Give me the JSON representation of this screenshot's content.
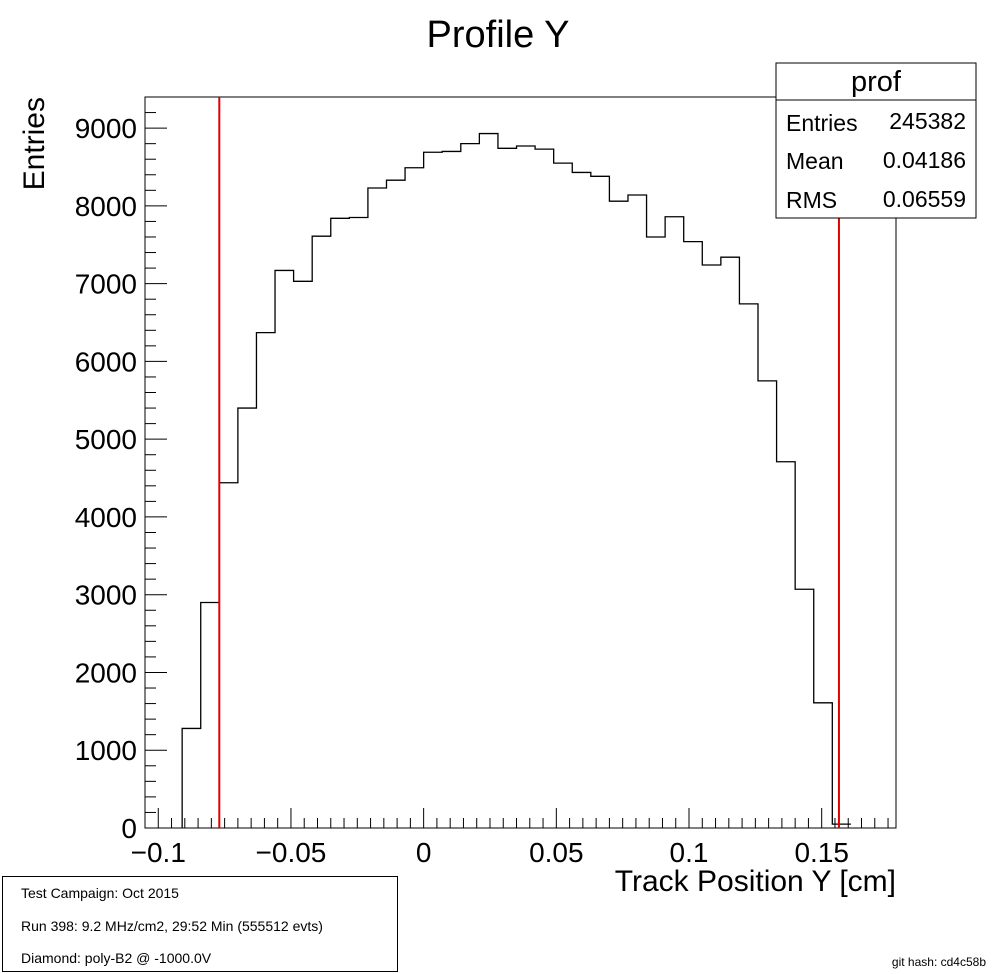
{
  "chart_data": {
    "type": "histogram",
    "title": "Profile Y",
    "xlabel": "Track Position Y [cm]",
    "ylabel": "Entries",
    "xlim": [
      -0.105,
      0.178
    ],
    "ylim": [
      0,
      9400
    ],
    "x_ticks": [
      -0.1,
      -0.05,
      0,
      0.05,
      0.1,
      0.15
    ],
    "x_tick_labels": [
      "−0.1",
      "−0.05",
      "0",
      "0.05",
      "0.1",
      "0.15"
    ],
    "y_ticks": [
      0,
      1000,
      2000,
      3000,
      4000,
      5000,
      6000,
      7000,
      8000,
      9000
    ],
    "y_tick_labels": [
      "0",
      "1000",
      "2000",
      "3000",
      "4000",
      "5000",
      "6000",
      "7000",
      "8000",
      "9000"
    ],
    "bin_start": -0.091,
    "bin_width": 0.007,
    "values": [
      1280,
      2900,
      4440,
      5400,
      6370,
      7170,
      7030,
      7610,
      7840,
      7850,
      8230,
      8330,
      8490,
      8690,
      8700,
      8800,
      8930,
      8740,
      8770,
      8730,
      8550,
      8430,
      8380,
      8060,
      8140,
      7600,
      7860,
      7540,
      7240,
      7340,
      6740,
      5750,
      4710,
      3070,
      1610,
      50
    ],
    "cut_lines": [
      -0.077,
      0.1565
    ],
    "line_colors": {
      "histogram": "#000000",
      "cuts": "#e00000"
    },
    "stats": {
      "title": "prof",
      "rows": [
        {
          "label": "Entries",
          "value": "245382"
        },
        {
          "label": "Mean",
          "value": "0.04186"
        },
        {
          "label": "RMS",
          "value": "0.06559"
        }
      ]
    }
  },
  "info": {
    "campaign": "Test Campaign: Oct 2015",
    "run": "Run 398: 9.2 MHz/cm2, 29:52 Min (555512 evts)",
    "diamond": "Diamond: poly-B2 @ -1000.0V"
  },
  "git_hash": "git hash: cd4c58b"
}
